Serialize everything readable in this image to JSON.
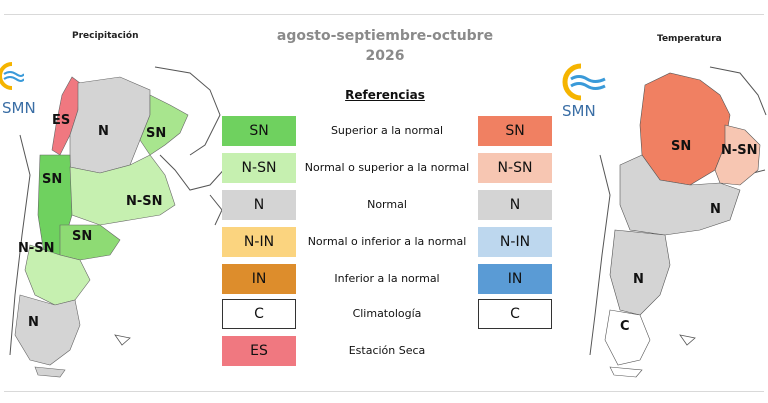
{
  "header": {
    "period": "agosto-septiembre-octubre",
    "year": "2026"
  },
  "maps": {
    "precip_title": "Precipitación",
    "temp_title": "Temperatura",
    "logo_text": "SMN",
    "precip_labels": {
      "es": "ES",
      "n_north": "N",
      "sn_ne": "SN",
      "sn_west": "SN",
      "nsn_east": "N-SN",
      "sn_center": "SN",
      "nsn_west": "N-SN",
      "n_south": "N"
    },
    "temp_labels": {
      "sn": "SN",
      "nsn": "N-SN",
      "n_center": "N",
      "n_south": "N",
      "c": "C"
    }
  },
  "legend": {
    "title": "Referencias",
    "rows": [
      {
        "left": "SN",
        "desc": "Superior a la normal",
        "right": "SN",
        "left_color": "#6fd15f",
        "right_color": "#f08062"
      },
      {
        "left": "N-SN",
        "desc": "Normal o superior a la normal",
        "right": "N-SN",
        "left_color": "#c6f0b0",
        "right_color": "#f7c6b2"
      },
      {
        "left": "N",
        "desc": "Normal",
        "right": "N",
        "left_color": "#d4d4d4",
        "right_color": "#d4d4d4"
      },
      {
        "left": "N-IN",
        "desc": "Normal o inferior a la normal",
        "right": "N-IN",
        "left_color": "#fbd47f",
        "right_color": "#bdd7ee"
      },
      {
        "left": "IN",
        "desc": "Inferior a la normal",
        "right": "IN",
        "left_color": "#dd8d2c",
        "right_color": "#5a9bd5"
      },
      {
        "left": "C",
        "desc": "Climatología",
        "right": "C",
        "left_color": "#ffffff",
        "right_color": "#ffffff"
      },
      {
        "left": "ES",
        "desc": "Estación Seca",
        "left_color": "#f07880"
      }
    ]
  }
}
